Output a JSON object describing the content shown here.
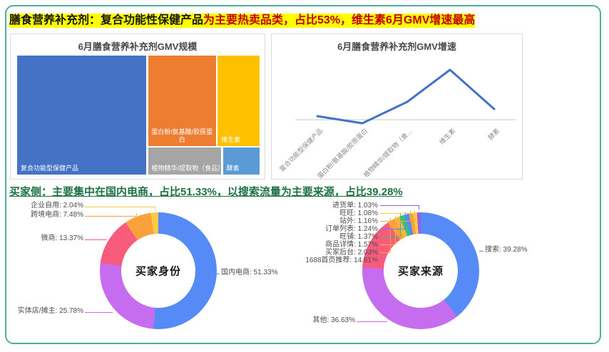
{
  "page": {
    "title_highlight": {
      "lead": "膳食营养补充剂：复合功能性保健产品",
      "rest": "为主要热卖品类，占比53%，维生素6月GMV增速最高",
      "highlight_color": "#FFFF00",
      "lead_color": "#151515",
      "rest_color": "#C00000"
    },
    "buyer_heading": {
      "text": "买家侧：主要集中在国内电商，占比51.33%，以搜索流量为主要来源，占比39.28%",
      "color": "#1E7145"
    }
  },
  "chart_data": [
    {
      "id": "gmv_treemap",
      "type": "treemap",
      "title": "6月膳食营养补充剂GMV规模",
      "items": [
        {
          "label": "复合功能型保健产品",
          "share_pct_estimated": 53,
          "color": "#4472C4"
        },
        {
          "label": "蛋白粉/氨基酸/胶原蛋白",
          "share_pct_estimated": 21,
          "color": "#ED7D31"
        },
        {
          "label": "维生素",
          "share_pct_estimated": 13,
          "color": "#FFC000"
        },
        {
          "label": "植物精华/提取物（食品）",
          "share_pct_estimated": 7,
          "color": "#A5A5A5"
        },
        {
          "label": "酵素",
          "share_pct_estimated": 4,
          "color": "#5B9BD5"
        }
      ]
    },
    {
      "id": "gmv_growth_line",
      "type": "line",
      "title": "6月膳食营养补充剂GMV增速",
      "categories": [
        "复合功能型保健产品",
        "蛋白粉/氨基酸/胶原蛋白",
        "植物精华/提取物（食…",
        "维生素",
        "酵素"
      ],
      "values_estimated": [
        5,
        -5,
        25,
        70,
        15
      ],
      "y_axis": "unlabeled; relative growth, 维生素 is the peak",
      "line_color": "#4472C4",
      "baseline_color": "#C9C9C9"
    },
    {
      "id": "buyer_identity_donut",
      "type": "pie",
      "center_label": "买家身份",
      "slices": [
        {
          "name": "国内电商",
          "pct": 51.33,
          "color": "#568AF7"
        },
        {
          "name": "实体店/摊主",
          "pct": 25.78,
          "color": "#C56CEF"
        },
        {
          "name": "微商",
          "pct": 13.37,
          "color": "#F85C7D"
        },
        {
          "name": "跨境电商",
          "pct": 7.48,
          "color": "#F9A13C"
        },
        {
          "name": "企业自用",
          "pct": 2.04,
          "color": "#FFC847"
        }
      ]
    },
    {
      "id": "buyer_source_donut",
      "type": "pie",
      "center_label": "买家来源",
      "slices": [
        {
          "name": "搜索",
          "pct": 39.28,
          "color": "#568AF7"
        },
        {
          "name": "其他",
          "pct": 36.63,
          "color": "#C56CEF"
        },
        {
          "name": "1688首页推荐",
          "pct": 14.61,
          "color": "#F85C7D"
        },
        {
          "name": "买家后台",
          "pct": 2.03,
          "color": "#F9A13C"
        },
        {
          "name": "商品详情",
          "pct": 1.57,
          "color": "#FFB340"
        },
        {
          "name": "旺铺",
          "pct": 1.37,
          "color": "#33C377"
        },
        {
          "name": "订单列表",
          "pct": 1.24,
          "color": "#568AF7"
        },
        {
          "name": "站外",
          "pct": 1.16,
          "color": "#F9A13C"
        },
        {
          "name": "旺旺",
          "pct": 1.08,
          "color": "#FFC847"
        },
        {
          "name": "进货单",
          "pct": 1.03,
          "color": "#9D5CE6"
        }
      ]
    }
  ]
}
